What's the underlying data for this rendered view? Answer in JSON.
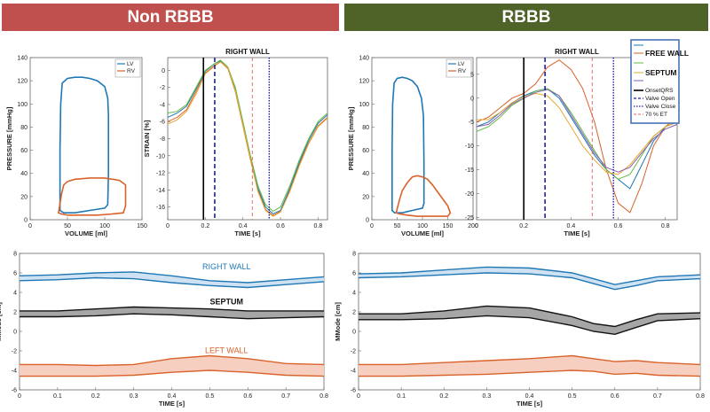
{
  "banners": {
    "left": {
      "label": "Non RBBB",
      "color": "#c0504d"
    },
    "right": {
      "label": "RBBB",
      "color": "#4f6228"
    }
  },
  "colors": {
    "lv": "#1f77b4",
    "rv": "#d9622b",
    "septum_band": "#404040",
    "onset": "#000000",
    "valve_open": "#1f1fa8",
    "valve_close": "#1f1fa8",
    "et70": "#e06060"
  },
  "chart_data": [
    {
      "id": "pv_nonrbbb",
      "type": "line",
      "xlabel": "VOLUME [ml]",
      "ylabel": "PRESSURE [mmHg]",
      "xlim": [
        0,
        150
      ],
      "ylim": [
        0,
        140
      ],
      "xticks": [
        "0",
        "50",
        "100",
        "150"
      ],
      "yticks": [
        "0",
        "20",
        "40",
        "60",
        "80",
        "100",
        "120",
        "140"
      ],
      "legend": [
        "LV",
        "RV"
      ],
      "legend_position": "top-right",
      "series": [
        {
          "name": "LV",
          "x": [
            40,
            40,
            41,
            43,
            50,
            60,
            70,
            80,
            90,
            100,
            104,
            105,
            105,
            104,
            100,
            80,
            60,
            45,
            40
          ],
          "y": [
            8,
            60,
            100,
            118,
            122,
            123,
            123,
            122,
            120,
            115,
            105,
            90,
            40,
            13,
            10,
            8,
            6,
            6,
            8
          ]
        },
        {
          "name": "RV",
          "x": [
            38,
            42,
            45,
            50,
            60,
            80,
            100,
            120,
            128,
            128,
            125,
            110,
            90,
            70,
            50,
            42,
            38
          ],
          "y": [
            6,
            22,
            30,
            33,
            35,
            36,
            36,
            34,
            30,
            12,
            6,
            5,
            4,
            4,
            4,
            5,
            6
          ]
        }
      ]
    },
    {
      "id": "strain_nonrbbb",
      "type": "line",
      "title": "RIGHT WALL",
      "xlabel": "TIME [s]",
      "ylabel": "STRAIN [%]",
      "xlim": [
        0,
        0.85
      ],
      "ylim": [
        -17.5,
        1.5
      ],
      "xticks": [
        "0",
        "0.2",
        "0.4",
        "0.6",
        "0.8"
      ],
      "yticks": [
        "0",
        "-2",
        "-4",
        "-6",
        "-8",
        "-10",
        "-12",
        "-14",
        "-16"
      ],
      "markers": {
        "onset": 0.19,
        "valve_open": 0.25,
        "et70": 0.45,
        "valve_close": 0.54
      },
      "series": [
        {
          "x": [
            0,
            0.05,
            0.1,
            0.15,
            0.2,
            0.25,
            0.28,
            0.32,
            0.36,
            0.4,
            0.44,
            0.48,
            0.52,
            0.56,
            0.6,
            0.65,
            0.7,
            0.75,
            0.8,
            0.85
          ],
          "y": [
            -6,
            -5.5,
            -4.6,
            -2.5,
            -0.3,
            0.6,
            1,
            0.2,
            -2.5,
            -6.5,
            -10.5,
            -14,
            -16.3,
            -17,
            -16.5,
            -14,
            -11,
            -8.5,
            -6.5,
            -5.5
          ]
        },
        {
          "x": [
            0,
            0.05,
            0.1,
            0.15,
            0.2,
            0.25,
            0.28,
            0.32,
            0.36,
            0.4,
            0.44,
            0.48,
            0.52,
            0.56,
            0.6,
            0.65,
            0.7,
            0.75,
            0.8,
            0.85
          ],
          "y": [
            -5.5,
            -5,
            -4.2,
            -2.2,
            -0.1,
            0.8,
            1.1,
            0.3,
            -2.2,
            -6.2,
            -10.2,
            -13.8,
            -16,
            -16.8,
            -16.4,
            -13.8,
            -10.8,
            -8.2,
            -6.2,
            -5.2
          ]
        },
        {
          "x": [
            0,
            0.05,
            0.1,
            0.15,
            0.2,
            0.25,
            0.28,
            0.32,
            0.36,
            0.4,
            0.44,
            0.48,
            0.52,
            0.56,
            0.6,
            0.65,
            0.7,
            0.75,
            0.8,
            0.85
          ],
          "y": [
            -5,
            -4.8,
            -4,
            -2,
            0,
            0.8,
            1.2,
            0.4,
            -2,
            -6,
            -10,
            -13.5,
            -15.7,
            -16.5,
            -16,
            -13.5,
            -10.5,
            -8,
            -6,
            -5
          ]
        },
        {
          "x": [
            0,
            0.05,
            0.1,
            0.15,
            0.2,
            0.25,
            0.28,
            0.32,
            0.36,
            0.4,
            0.44,
            0.48,
            0.52,
            0.56,
            0.6,
            0.65,
            0.7,
            0.75,
            0.8,
            0.85
          ],
          "y": [
            -6.3,
            -5.8,
            -4.8,
            -2.8,
            -0.4,
            0.5,
            1,
            0.3,
            -2.4,
            -6.4,
            -10.4,
            -14.2,
            -16.4,
            -17.1,
            -16.6,
            -14.2,
            -11.2,
            -8.6,
            -6.6,
            -5.6
          ]
        }
      ]
    },
    {
      "id": "pv_rbbb",
      "type": "line",
      "xlabel": "VOLUME [ml]",
      "ylabel": "PRESSURE [mmHg]",
      "xlim": [
        0,
        200
      ],
      "ylim": [
        0,
        140
      ],
      "xticks": [
        "0",
        "50",
        "100",
        "150",
        "200"
      ],
      "yticks": [
        "0",
        "20",
        "40",
        "60",
        "80",
        "100",
        "120",
        "140"
      ],
      "legend": [
        "LV",
        "RV"
      ],
      "legend_position": "top-right",
      "series": [
        {
          "name": "LV",
          "x": [
            40,
            40,
            41,
            44,
            50,
            60,
            70,
            80,
            90,
            98,
            102,
            103,
            103,
            100,
            80,
            60,
            45,
            40
          ],
          "y": [
            8,
            60,
            100,
            118,
            122,
            123,
            122,
            120,
            115,
            105,
            90,
            50,
            14,
            10,
            8,
            6,
            6,
            8
          ]
        },
        {
          "name": "RV",
          "x": [
            48,
            55,
            60,
            70,
            80,
            90,
            100,
            110,
            120,
            130,
            140,
            150,
            155,
            150,
            130,
            110,
            90,
            70,
            55,
            48
          ],
          "y": [
            6,
            18,
            25,
            32,
            37,
            38,
            37,
            35,
            30,
            24,
            18,
            12,
            6,
            3,
            3,
            3,
            3,
            4,
            5,
            6
          ]
        }
      ]
    },
    {
      "id": "strain_rbbb",
      "type": "line",
      "title": "RIGHT WALL",
      "xlabel": "TIME [s]",
      "xlim": [
        0,
        0.85
      ],
      "ylim": [
        -25.5,
        8.5
      ],
      "xticks": [
        "0",
        "0.2",
        "0.4",
        "0.6",
        "0.8"
      ],
      "yticks": [
        "5",
        "0",
        "-5",
        "-10",
        "-15",
        "-20",
        "-25"
      ],
      "markers": {
        "onset": 0.2,
        "valve_open": 0.29,
        "et70": 0.49,
        "valve_close": 0.58
      },
      "legend": [
        "FREE WALL",
        "SEPTUM",
        "OnsetQRS",
        "Valve Open",
        "Valve Close",
        "70 % ET"
      ],
      "legend_position": "top-right",
      "series": [
        {
          "x": [
            0,
            0.05,
            0.1,
            0.15,
            0.2,
            0.25,
            0.3,
            0.35,
            0.4,
            0.45,
            0.5,
            0.55,
            0.6,
            0.65,
            0.7,
            0.75,
            0.8,
            0.85
          ],
          "y": [
            -5,
            -4,
            -2,
            0,
            1,
            3,
            6.5,
            8,
            6,
            2,
            -5,
            -15,
            -22,
            -24,
            -18,
            -10,
            -6,
            -4
          ]
        },
        {
          "x": [
            0,
            0.05,
            0.1,
            0.15,
            0.2,
            0.25,
            0.3,
            0.35,
            0.4,
            0.45,
            0.5,
            0.55,
            0.6,
            0.65,
            0.7,
            0.75,
            0.8,
            0.85
          ],
          "y": [
            -6,
            -5,
            -3,
            -1,
            0.5,
            1.5,
            2,
            0,
            -4,
            -8,
            -12,
            -15,
            -17,
            -19,
            -14,
            -9,
            -6,
            -5
          ]
        },
        {
          "x": [
            0,
            0.05,
            0.1,
            0.15,
            0.2,
            0.25,
            0.3,
            0.35,
            0.4,
            0.45,
            0.5,
            0.55,
            0.6,
            0.65,
            0.7,
            0.75,
            0.8,
            0.85
          ],
          "y": [
            -7,
            -6,
            -4,
            -1.5,
            0,
            1.5,
            2,
            0.5,
            -3,
            -7,
            -11,
            -15,
            -17,
            -16,
            -12,
            -8,
            -6,
            -5
          ]
        },
        {
          "x": [
            0,
            0.05,
            0.1,
            0.15,
            0.2,
            0.25,
            0.3,
            0.35,
            0.4,
            0.45,
            0.5,
            0.55,
            0.6,
            0.65,
            0.7,
            0.75,
            0.8,
            0.85
          ],
          "y": [
            -4.5,
            -4.5,
            -3,
            -1,
            0.3,
            1,
            0.5,
            -2,
            -6,
            -10,
            -13,
            -15.5,
            -16,
            -14,
            -11,
            -8,
            -6,
            -5
          ]
        },
        {
          "x": [
            0,
            0.05,
            0.1,
            0.15,
            0.2,
            0.25,
            0.3,
            0.35,
            0.4,
            0.45,
            0.5,
            0.55,
            0.6,
            0.65,
            0.7,
            0.75,
            0.8,
            0.85
          ],
          "y": [
            -6,
            -5.5,
            -3.5,
            -1.2,
            0,
            1.2,
            1.8,
            0.5,
            -3.5,
            -7.5,
            -11.5,
            -14.5,
            -15.5,
            -14.5,
            -11.5,
            -8.5,
            -6.5,
            -5.5
          ]
        }
      ]
    },
    {
      "id": "mmode_nonrbbb",
      "type": "area",
      "xlabel": "TIME [s]",
      "ylabel": "MMode [cm]",
      "xlim": [
        0,
        0.8
      ],
      "ylim": [
        -6,
        8
      ],
      "xticks": [
        "0",
        "0.1",
        "0.2",
        "0.3",
        "0.4",
        "0.5",
        "0.6",
        "0.7",
        "0.8"
      ],
      "yticks": [
        "8",
        "6",
        "4",
        "2",
        "0",
        "-2",
        "-4",
        "-6"
      ],
      "x": [
        0,
        0.1,
        0.2,
        0.3,
        0.4,
        0.5,
        0.6,
        0.7,
        0.8
      ],
      "bands": [
        {
          "name": "RIGHT WALL",
          "upper": [
            5.7,
            5.8,
            6.0,
            6.1,
            5.7,
            5.2,
            5.0,
            5.3,
            5.6
          ],
          "lower": [
            5.2,
            5.3,
            5.5,
            5.4,
            5.0,
            4.7,
            4.5,
            4.8,
            5.1
          ]
        },
        {
          "name": "SEPTUM",
          "upper": [
            2.1,
            2.1,
            2.3,
            2.5,
            2.4,
            2.3,
            2.1,
            2.1,
            2.1
          ],
          "lower": [
            1.5,
            1.5,
            1.6,
            1.8,
            1.7,
            1.5,
            1.3,
            1.4,
            1.5
          ]
        },
        {
          "name": "LEFT WALL",
          "upper": [
            -3.4,
            -3.4,
            -3.5,
            -3.4,
            -2.8,
            -2.5,
            -2.8,
            -3.3,
            -3.4
          ],
          "lower": [
            -4.6,
            -4.6,
            -4.6,
            -4.5,
            -4.2,
            -4.0,
            -4.2,
            -4.5,
            -4.6
          ]
        }
      ]
    },
    {
      "id": "mmode_rbbb",
      "type": "area",
      "xlabel": "TIME [s]",
      "ylabel": "MMode [cm]",
      "xlim": [
        0,
        0.8
      ],
      "ylim": [
        -6,
        8
      ],
      "xticks": [
        "0",
        "0.1",
        "0.2",
        "0.3",
        "0.4",
        "0.5",
        "0.6",
        "0.7",
        "0.8"
      ],
      "yticks": [
        "8",
        "6",
        "4",
        "2",
        "0",
        "-2",
        "-4",
        "-6"
      ],
      "x": [
        0,
        0.1,
        0.2,
        0.3,
        0.4,
        0.5,
        0.55,
        0.6,
        0.65,
        0.7,
        0.8
      ],
      "bands": [
        {
          "name": "",
          "upper": [
            5.9,
            6.0,
            6.3,
            6.6,
            6.5,
            6.0,
            5.4,
            4.8,
            5.2,
            5.6,
            5.8
          ],
          "lower": [
            5.5,
            5.6,
            5.8,
            6.0,
            5.9,
            5.5,
            4.9,
            4.3,
            4.7,
            5.2,
            5.4
          ]
        },
        {
          "name": "",
          "upper": [
            1.8,
            1.8,
            2.1,
            2.6,
            2.4,
            1.5,
            0.8,
            0.5,
            1.2,
            1.8,
            1.9
          ],
          "lower": [
            1.2,
            1.2,
            1.3,
            1.6,
            1.4,
            0.6,
            0.0,
            -0.3,
            0.4,
            1.1,
            1.3
          ]
        },
        {
          "name": "",
          "upper": [
            -3.4,
            -3.4,
            -3.2,
            -3.0,
            -2.8,
            -2.5,
            -2.8,
            -3.1,
            -3.0,
            -3.2,
            -3.4
          ],
          "lower": [
            -4.6,
            -4.6,
            -4.5,
            -4.4,
            -4.2,
            -4.0,
            -4.1,
            -4.4,
            -4.3,
            -4.5,
            -4.6
          ]
        }
      ]
    }
  ],
  "strain_colors": [
    "#d9622b",
    "#1f77b4",
    "#66bb44",
    "#e6a830",
    "#8a5fb0"
  ]
}
